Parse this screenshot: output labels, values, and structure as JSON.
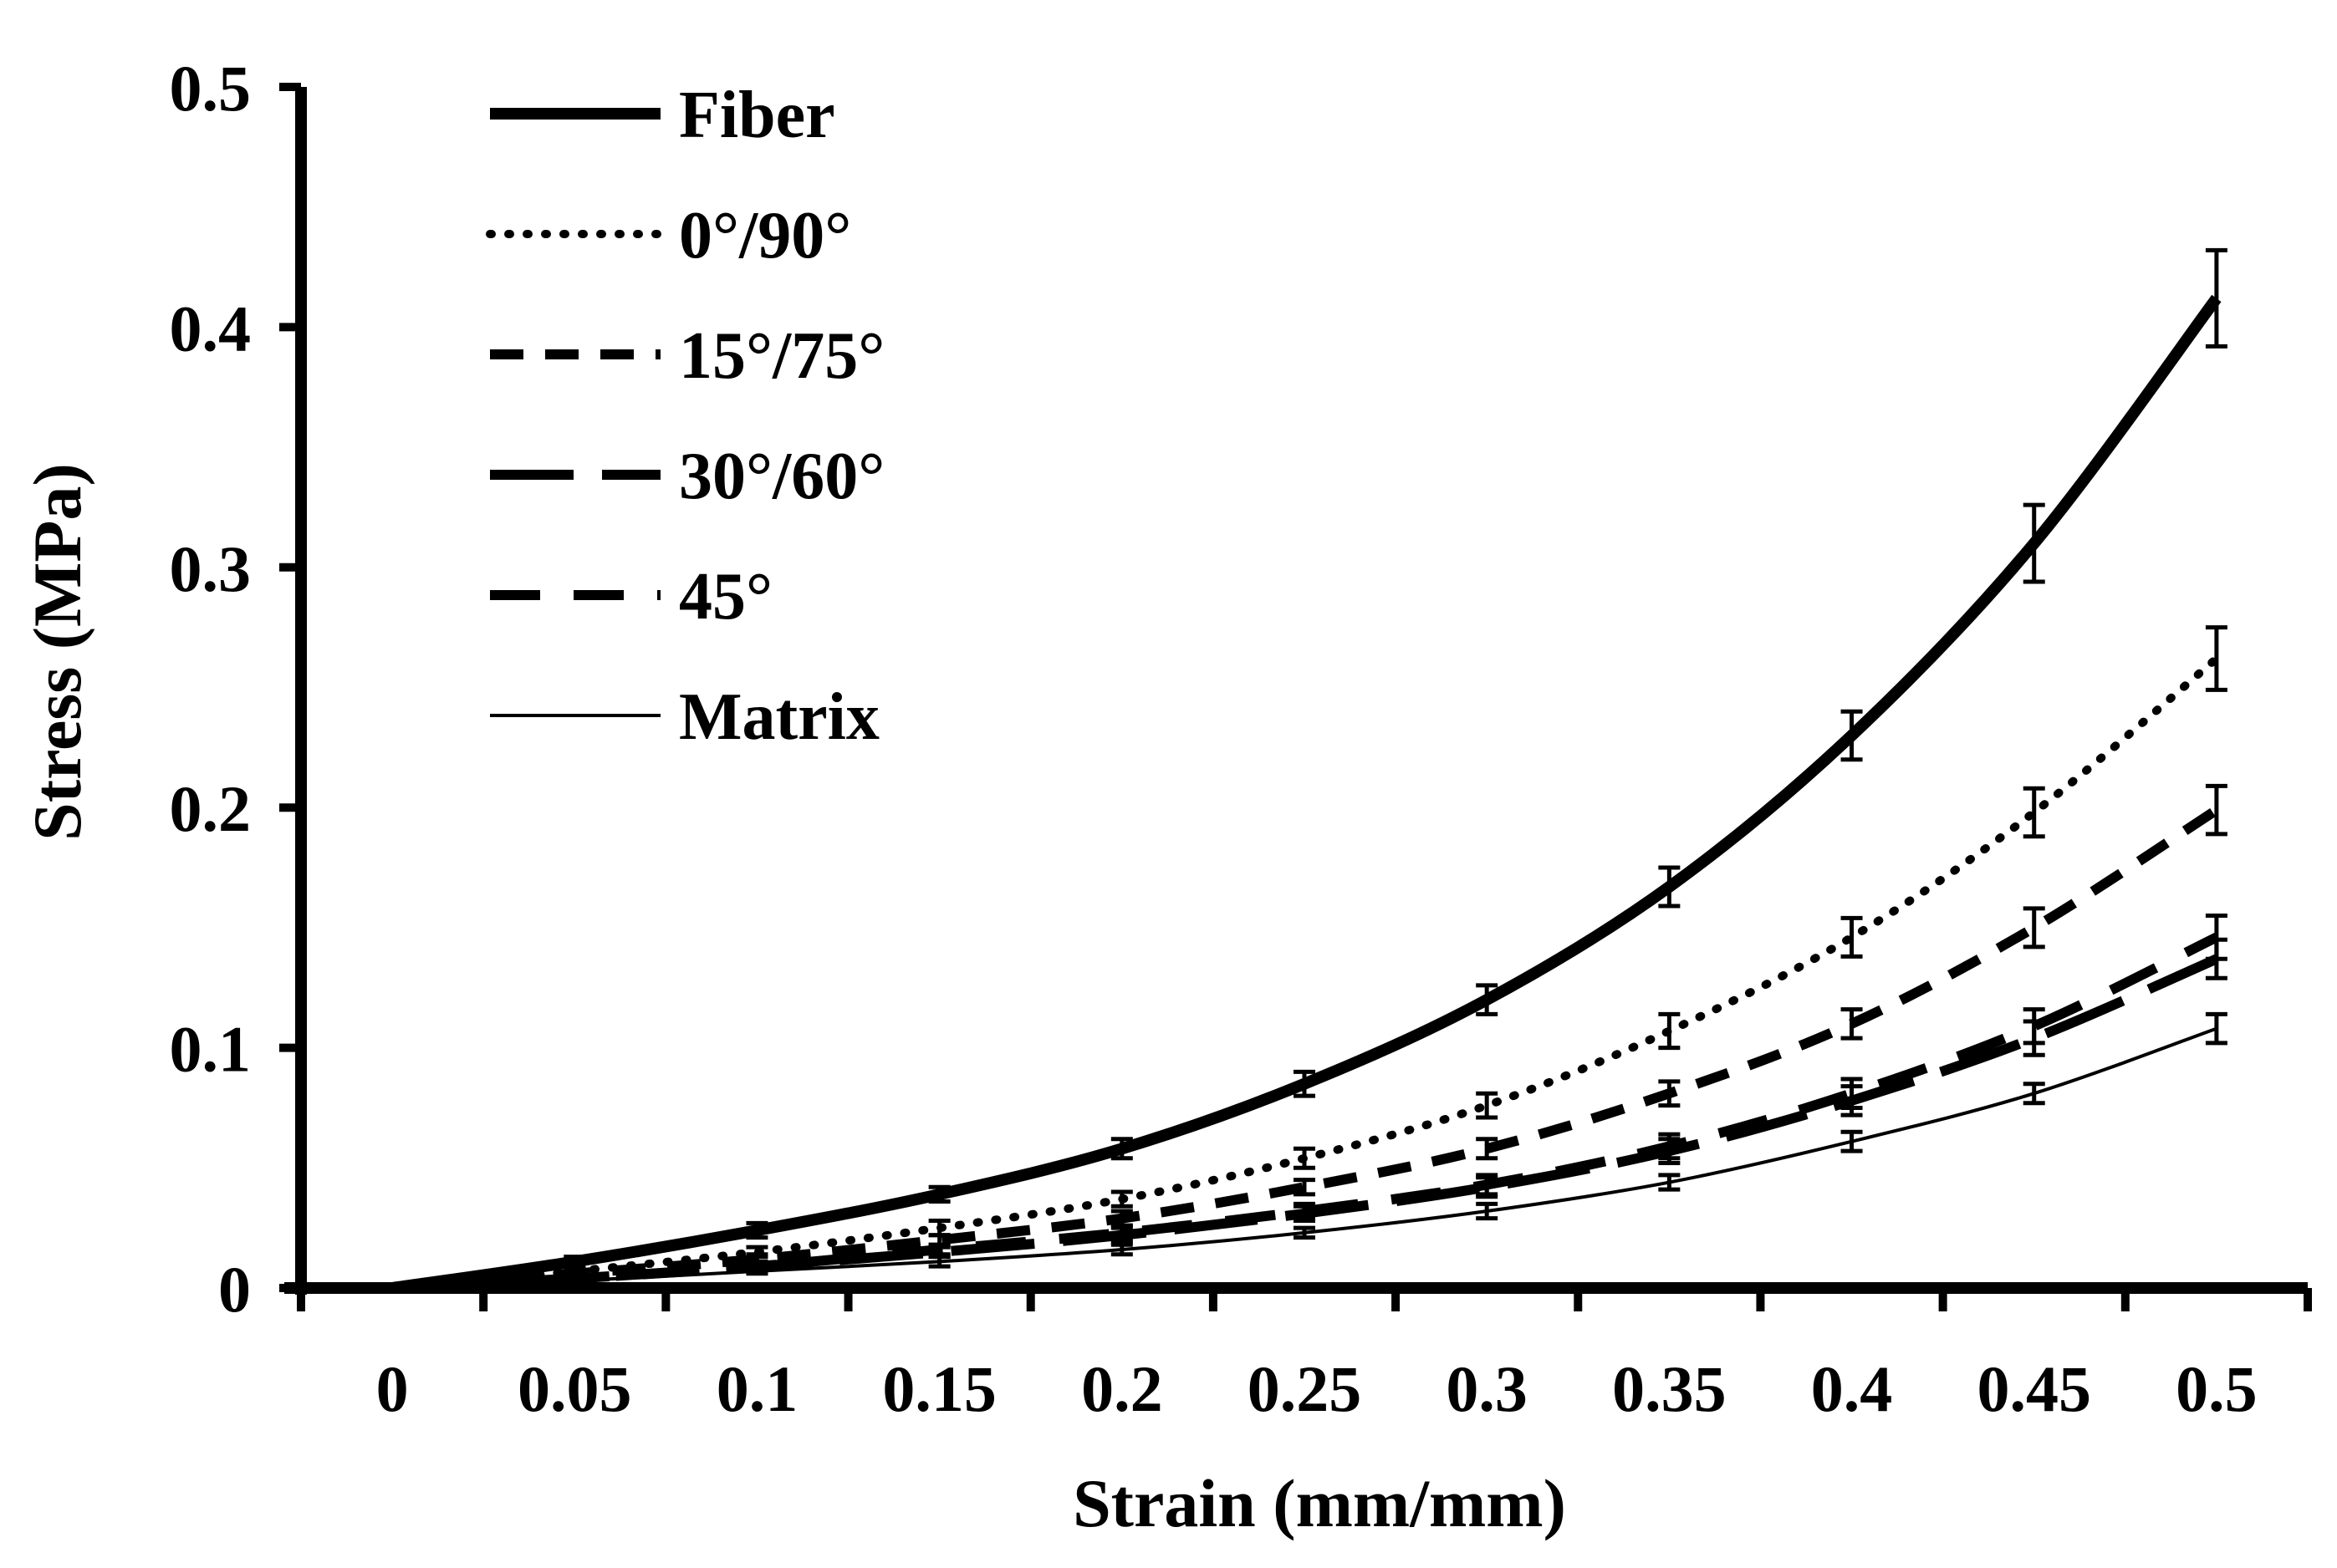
{
  "chart_data": {
    "type": "line",
    "title": "",
    "xlabel": "Strain (mm/mm)",
    "ylabel": "Stress (MPa)",
    "xlim": [
      -0.025,
      0.525
    ],
    "ylim": [
      0,
      0.5
    ],
    "grid": false,
    "legend_position": "top-left",
    "x_ticks": [
      0,
      0.05,
      0.1,
      0.15,
      0.2,
      0.25,
      0.3,
      0.35,
      0.4,
      0.45,
      0.5
    ],
    "x_tick_labels": [
      "0",
      "0.05",
      "0.1",
      "0.15",
      "0.2",
      "0.25",
      "0.3",
      "0.35",
      "0.4",
      "0.45",
      "0.5"
    ],
    "y_ticks": [
      0,
      0.1,
      0.2,
      0.3,
      0.4,
      0.5
    ],
    "y_tick_labels": [
      "0",
      "0.1",
      "0.2",
      "0.3",
      "0.4",
      "0.5"
    ],
    "x": [
      0,
      0.05,
      0.1,
      0.15,
      0.2,
      0.25,
      0.3,
      0.35,
      0.4,
      0.45,
      0.5
    ],
    "series": [
      {
        "name": "Fiber",
        "style": "solid-thick",
        "values": [
          0,
          0.011,
          0.024,
          0.039,
          0.058,
          0.085,
          0.12,
          0.167,
          0.23,
          0.31,
          0.412
        ],
        "error_bars": [
          0,
          0.002,
          0.003,
          0.003,
          0.004,
          0.005,
          0.006,
          0.008,
          0.01,
          0.016,
          0.02
        ]
      },
      {
        "name": "0°/90°",
        "style": "dotted",
        "values": [
          0,
          0.007,
          0.015,
          0.025,
          0.037,
          0.054,
          0.076,
          0.107,
          0.146,
          0.198,
          0.262
        ],
        "error_bars": [
          0,
          0.002,
          0.002,
          0.003,
          0.003,
          0.004,
          0.005,
          0.007,
          0.008,
          0.01,
          0.013
        ]
      },
      {
        "name": "15°/75°",
        "style": "dashed-short",
        "values": [
          0,
          0.006,
          0.012,
          0.02,
          0.029,
          0.042,
          0.058,
          0.081,
          0.11,
          0.15,
          0.199
        ],
        "error_bars": [
          0,
          0.002,
          0.002,
          0.002,
          0.003,
          0.003,
          0.004,
          0.005,
          0.006,
          0.008,
          0.01
        ]
      },
      {
        "name": "30°/60°",
        "style": "dashed-long",
        "values": [
          0,
          0.004,
          0.009,
          0.015,
          0.022,
          0.031,
          0.042,
          0.057,
          0.078,
          0.104,
          0.137
        ],
        "error_bars": [
          0,
          0.001,
          0.002,
          0.002,
          0.003,
          0.003,
          0.004,
          0.005,
          0.006,
          0.007,
          0.008
        ]
      },
      {
        "name": "45°",
        "style": "dashed-medium",
        "values": [
          0,
          0.004,
          0.009,
          0.016,
          0.023,
          0.032,
          0.043,
          0.059,
          0.081,
          0.109,
          0.146
        ],
        "error_bars": [
          0,
          0.001,
          0.002,
          0.002,
          0.003,
          0.003,
          0.004,
          0.005,
          0.006,
          0.007,
          0.009
        ]
      },
      {
        "name": "Matrix",
        "style": "solid-thin",
        "values": [
          0,
          0.003,
          0.007,
          0.011,
          0.016,
          0.023,
          0.032,
          0.044,
          0.061,
          0.081,
          0.108
        ],
        "error_bars": [
          0,
          0.001,
          0.001,
          0.002,
          0.002,
          0.002,
          0.003,
          0.003,
          0.004,
          0.004,
          0.006
        ]
      }
    ]
  }
}
